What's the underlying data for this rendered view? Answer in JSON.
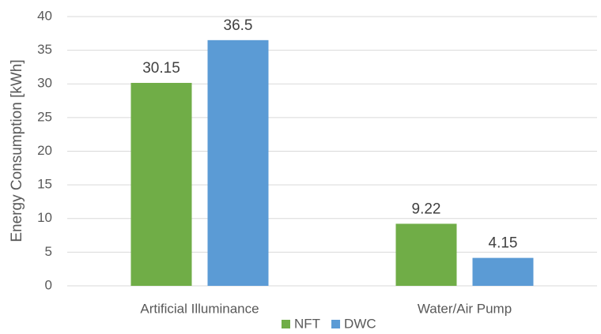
{
  "chart_data": {
    "type": "bar",
    "y_label": "Energy Consumption [kWh]",
    "categories": [
      "Artificial Illuminance",
      "Water/Air Pump"
    ],
    "series": [
      {
        "name": "NFT",
        "color": "#70ad47",
        "values": [
          30.15,
          9.22
        ]
      },
      {
        "name": "DWC",
        "color": "#5b9bd5",
        "values": [
          36.5,
          4.15
        ]
      }
    ],
    "ylim": [
      0,
      40
    ],
    "yticks": [
      0,
      5,
      10,
      15,
      20,
      25,
      30,
      35,
      40
    ],
    "grid": true,
    "legend": "bottom"
  }
}
